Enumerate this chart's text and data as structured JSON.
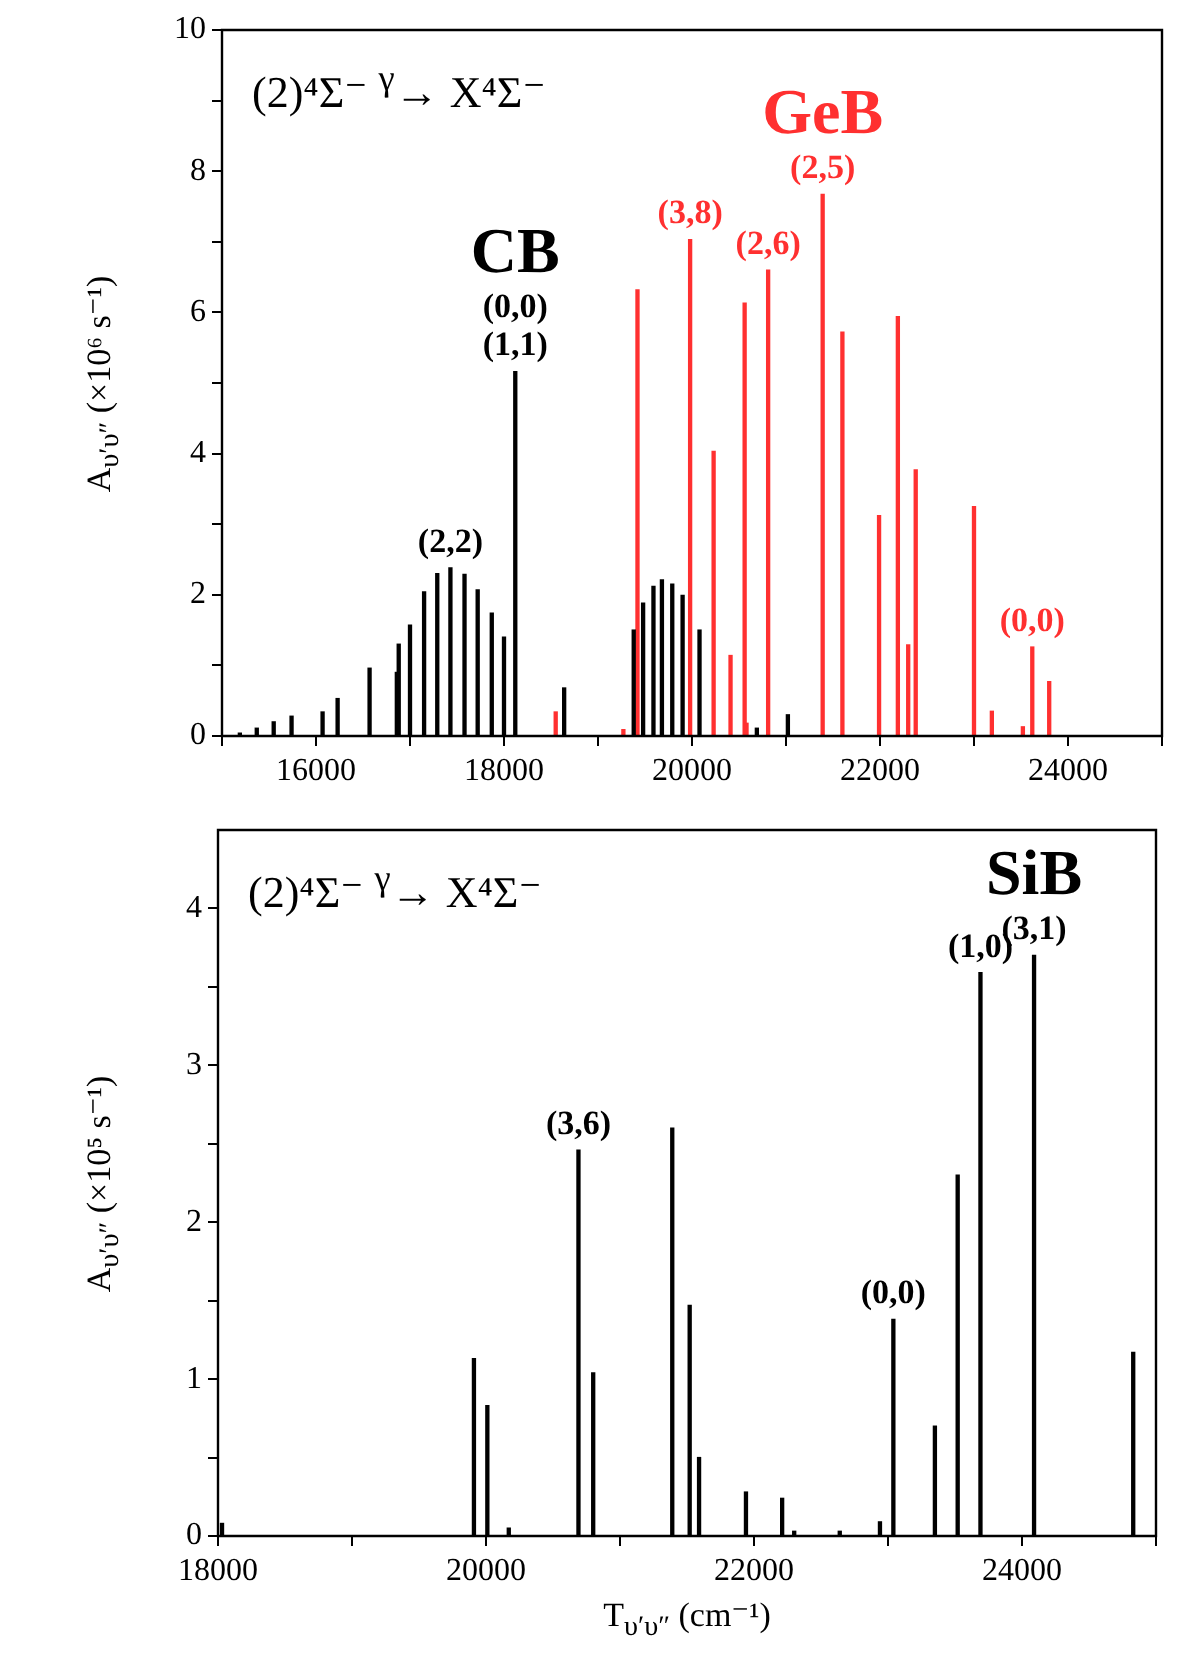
{
  "chart_data": [
    {
      "type": "bar",
      "title": "(2)⁴Σ⁻ $^{γ}$→ X⁴Σ⁻",
      "ylabel": "A$_{υ′υ″}$ (×10⁶ s⁻¹)",
      "series": [
        {
          "name": "CB",
          "color": "#000000",
          "x": [
            15190,
            15370,
            15550,
            15740,
            16070,
            16230,
            16570,
            16860,
            16880,
            17000,
            17150,
            17290,
            17430,
            17580,
            17720,
            17870,
            18000,
            18120,
            18640,
            19380,
            19480,
            19590,
            19680,
            19790,
            19900,
            20080,
            20690,
            21020
          ],
          "values": [
            0.04,
            0.11,
            0.2,
            0.28,
            0.34,
            0.53,
            0.96,
            0.9,
            1.3,
            1.57,
            2.04,
            2.3,
            2.38,
            2.29,
            2.07,
            1.74,
            1.4,
            5.16,
            0.68,
            1.5,
            1.88,
            2.12,
            2.21,
            2.15,
            1.99,
            1.5,
            0.11,
            0.3
          ]
        },
        {
          "name": "GeB",
          "color": "#ff3030",
          "x": [
            18550,
            19270,
            19420,
            19980,
            20230,
            20410,
            20560,
            20580,
            20810,
            21390,
            21600,
            21990,
            22190,
            22300,
            22380,
            23000,
            23190,
            23520,
            23620,
            23800
          ],
          "values": [
            0.34,
            0.09,
            6.32,
            7.03,
            4.03,
            1.14,
            6.13,
            0.18,
            6.6,
            7.67,
            5.72,
            3.12,
            5.94,
            1.29,
            3.77,
            3.25,
            0.35,
            0.13,
            1.26,
            0.77
          ]
        }
      ],
      "annotations": [
        {
          "text": "(1,1)",
          "x": 18120,
          "y": 5.16
        },
        {
          "text": "(0,0)",
          "x": 18120,
          "y": 5.16
        },
        {
          "text": "(2,2)",
          "x": 17430,
          "y": 2.38
        },
        {
          "text": "(3,8)",
          "x": 19980,
          "y": 7.03
        },
        {
          "text": "(2,5)",
          "x": 21390,
          "y": 7.67
        },
        {
          "text": "(2,6)",
          "x": 20810,
          "y": 6.6
        },
        {
          "text": "(0,0)",
          "x": 23620,
          "y": 1.26
        }
      ],
      "xlim": [
        15000,
        25000
      ],
      "xticks": [
        {
          "value": 15000,
          "label": null
        },
        16000,
        {
          "value": 17000,
          "label": null
        },
        18000,
        {
          "value": 19000,
          "label": null
        },
        20000,
        {
          "value": 21000,
          "label": null
        },
        22000,
        {
          "value": 23000,
          "label": null
        },
        24000,
        {
          "value": 25000,
          "label": null
        }
      ],
      "ylim": [
        0,
        10
      ],
      "yticks": [
        0,
        {
          "value": 1,
          "label": null
        },
        2,
        {
          "value": 3,
          "label": null
        },
        4,
        {
          "value": 5,
          "label": null
        },
        6,
        {
          "value": 7,
          "label": null
        },
        8,
        {
          "value": 9,
          "label": null
        },
        10
      ]
    },
    {
      "type": "bar",
      "title": "(2)⁴Σ⁻ $^{γ}$→ X⁴Σ⁻",
      "ylabel": "A$_{υ′υ″}$ (×10⁵ s⁻¹)",
      "xlabel": "T$_{υ′υ″}$ (cm⁻¹)",
      "series": [
        {
          "name": "SiB",
          "color": "#000000",
          "x": [
            18030,
            19910,
            20010,
            20170,
            20690,
            20800,
            21390,
            21520,
            21590,
            21940,
            22210,
            22300,
            22640,
            22940,
            23040,
            23350,
            23520,
            23690,
            24090,
            24830
          ],
          "values": [
            0.08,
            1.13,
            0.83,
            0.05,
            2.46,
            1.04,
            2.6,
            1.47,
            0.5,
            0.28,
            0.24,
            0.03,
            0.03,
            0.09,
            1.38,
            0.7,
            2.3,
            3.59,
            3.7,
            1.17
          ]
        }
      ],
      "annotations": [
        {
          "text": "(3,6)",
          "x": 20690,
          "y": 2.46
        },
        {
          "text": "(0,0)",
          "x": 23040,
          "y": 1.38
        },
        {
          "text": "(1,0)",
          "x": 23690,
          "y": 3.59
        },
        {
          "text": "(3,1)",
          "x": 24090,
          "y": 3.7
        }
      ],
      "xlim": [
        18000,
        25000
      ],
      "xticks": [
        18000,
        {
          "value": 19000,
          "label": null
        },
        20000,
        {
          "value": 21000,
          "label": null
        },
        22000,
        {
          "value": 23000,
          "label": null
        },
        24000,
        {
          "value": 25000,
          "label": null
        }
      ],
      "ylim": [
        0,
        4.5
      ],
      "yticks": [
        0,
        {
          "value": 0.5,
          "label": null
        },
        1,
        {
          "value": 1.5,
          "label": null
        },
        2,
        {
          "value": 2.5,
          "label": null
        },
        3,
        {
          "value": 3.5,
          "label": null
        },
        4
      ]
    }
  ]
}
